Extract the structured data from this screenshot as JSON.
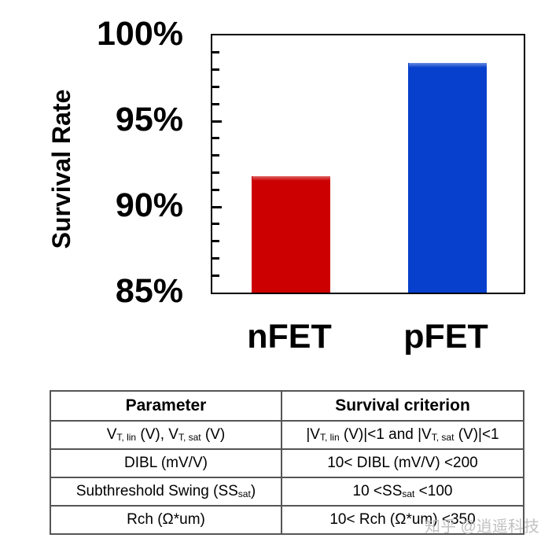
{
  "chart_data": {
    "type": "bar",
    "title": "",
    "xlabel": "",
    "ylabel": "Survival Rate",
    "categories": [
      "nFET",
      "pFET"
    ],
    "values": [
      91.8,
      98.4
    ],
    "value_unit": "%",
    "colors": [
      "#cc0000",
      "#0640cc"
    ],
    "ylim": [
      85,
      100
    ],
    "yticks": [
      "85%",
      "90%",
      "95%",
      "100%"
    ],
    "minor_tick_step": 1,
    "grid": false,
    "legend": null
  },
  "table": {
    "headers": [
      "Parameter",
      "Survival criterion"
    ],
    "rows": [
      {
        "parameter": {
          "pre": "V",
          "sub1": "T, lin",
          "mid": " (V), V",
          "sub2": "T, sat",
          "post": " (V)"
        },
        "criterion": {
          "pre": "|V",
          "sub1": "T, lin",
          "mid": " (V)|<1 and |V",
          "sub2": "T, sat",
          "post": " (V)|<1"
        }
      },
      {
        "parameter": {
          "text": "DIBL (mV/V)"
        },
        "criterion": {
          "text": "10< DIBL (mV/V) <200"
        }
      },
      {
        "parameter": {
          "pre": "Subthreshold Swing (SS",
          "sub1": "sat",
          "post": ")"
        },
        "criterion": {
          "pre": "10 <SS",
          "sub1": "sat",
          "post": " <100"
        }
      },
      {
        "parameter": {
          "text": "Rch (Ω*um)"
        },
        "criterion": {
          "text": "10< Rch (Ω*um) <350"
        }
      }
    ]
  },
  "watermark": "知乎 @逍遥科技"
}
